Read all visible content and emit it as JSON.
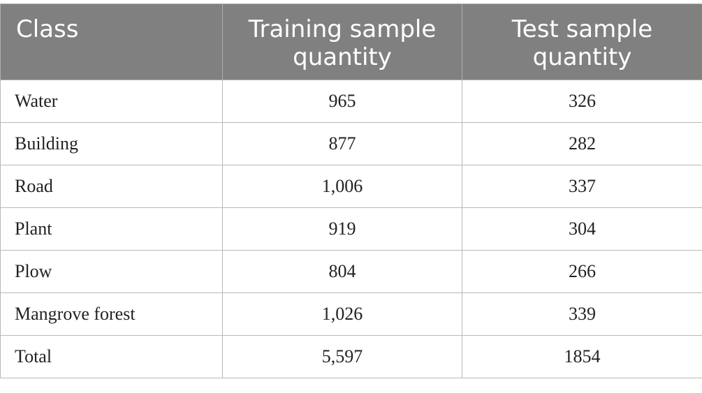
{
  "table": {
    "header": [
      "Class",
      "Training sample quantity",
      "Test sample quantity"
    ],
    "rows": [
      [
        "Water",
        "965",
        "326"
      ],
      [
        "Building",
        "877",
        "282"
      ],
      [
        "Road",
        "1,006",
        "337"
      ],
      [
        "Plant",
        "919",
        "304"
      ],
      [
        "Plow",
        "804",
        "266"
      ],
      [
        "Mangrove forest",
        "1,026",
        "339"
      ],
      [
        "Total",
        "5,597",
        "1854"
      ]
    ]
  }
}
